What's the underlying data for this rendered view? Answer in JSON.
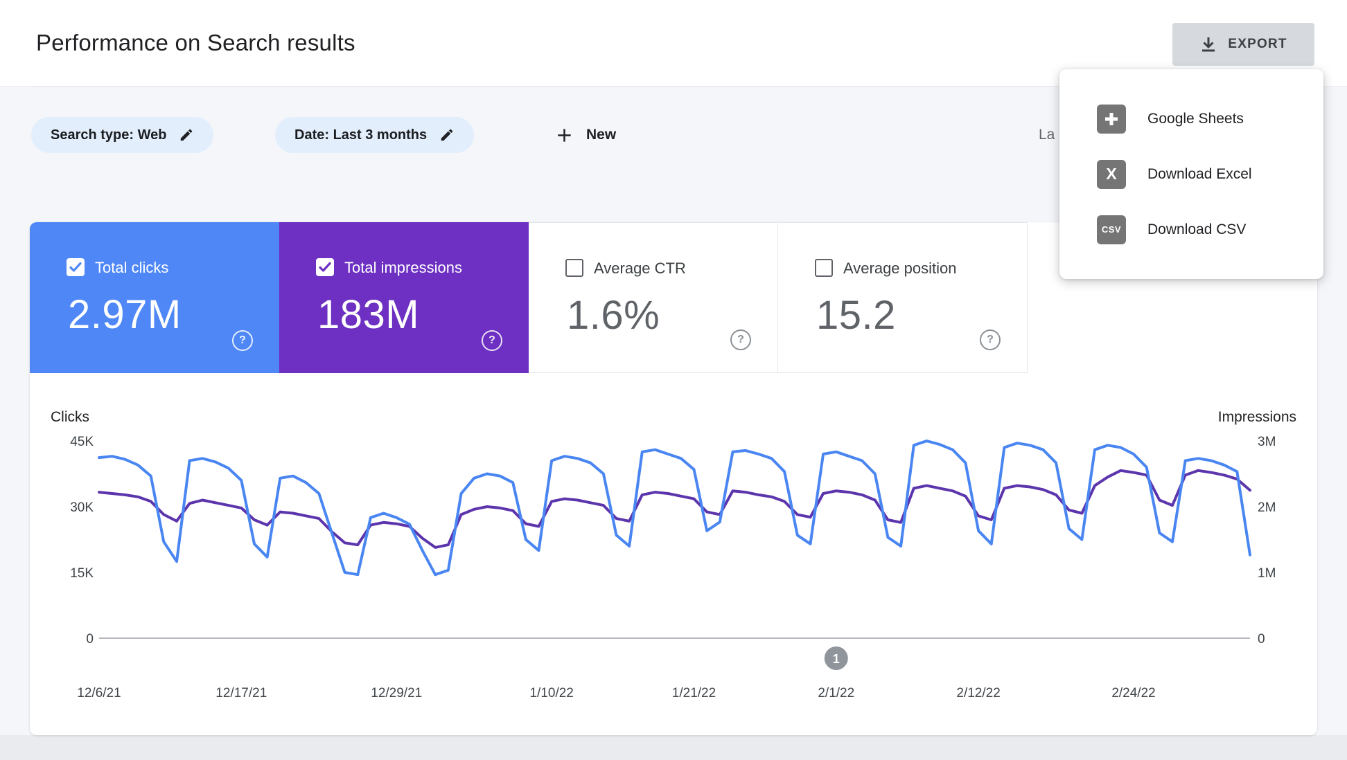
{
  "header": {
    "title": "Performance on Search results",
    "export_label": "EXPORT"
  },
  "export_menu": {
    "items": [
      {
        "label": "Google Sheets",
        "icon": "google-sheets-icon"
      },
      {
        "label": "Download Excel",
        "icon": "excel-icon",
        "icon_text": "X"
      },
      {
        "label": "Download CSV",
        "icon": "csv-icon",
        "icon_text": "CSV"
      }
    ]
  },
  "filters": {
    "search_type_chip": "Search type: Web",
    "date_chip": "Date: Last 3 months",
    "new_button": "New",
    "last_updated_partial": "La"
  },
  "metrics": [
    {
      "label": "Total clicks",
      "value": "2.97M",
      "selected": true,
      "color": "#4f88f6",
      "check_color": "#4f88f6"
    },
    {
      "label": "Total impressions",
      "value": "183M",
      "selected": true,
      "color": "#6d30c2",
      "check_color": "#6d30c2"
    },
    {
      "label": "Average CTR",
      "value": "1.6%",
      "selected": false,
      "color": "#ffffff"
    },
    {
      "label": "Average position",
      "value": "15.2",
      "selected": false,
      "color": "#ffffff"
    }
  ],
  "chart_data": {
    "type": "line",
    "num_points": 90,
    "x_ticks": [
      {
        "index": 0,
        "label": "12/6/21"
      },
      {
        "index": 11,
        "label": "12/17/21"
      },
      {
        "index": 23,
        "label": "12/29/21"
      },
      {
        "index": 35,
        "label": "1/10/22"
      },
      {
        "index": 46,
        "label": "1/21/22"
      },
      {
        "index": 57,
        "label": "2/1/22"
      },
      {
        "index": 68,
        "label": "2/12/22"
      },
      {
        "index": 80,
        "label": "2/24/22"
      }
    ],
    "left_axis": {
      "label": "Clicks",
      "unit": "K",
      "range": [
        0,
        45
      ],
      "ticks": [
        "0",
        "15K",
        "30K",
        "45K"
      ]
    },
    "right_axis": {
      "label": "Impressions",
      "unit": "M",
      "range": [
        0,
        3
      ],
      "ticks": [
        "0",
        "1M",
        "2M",
        "3M"
      ]
    },
    "grid": "baseline-only",
    "annotation_marker": {
      "label": "1",
      "at_index": 57
    },
    "series": [
      {
        "name": "Clicks",
        "axis": "left",
        "unit": "K",
        "color": "#4a86f2",
        "values": [
          41.2,
          41.5,
          40.8,
          39.5,
          37,
          22,
          17.5,
          40.5,
          41,
          40.2,
          38.8,
          36,
          21.5,
          18.5,
          36.5,
          37,
          35.5,
          33,
          24,
          15,
          14.5,
          27.5,
          28.5,
          27.5,
          26,
          20,
          14.5,
          15.5,
          33,
          36.5,
          37.5,
          37,
          35.5,
          22.5,
          20,
          40.5,
          41.5,
          41,
          40,
          37.5,
          23.5,
          21,
          42.5,
          43,
          42,
          41,
          38.5,
          24.5,
          26.5,
          42.5,
          42.8,
          42,
          41,
          38,
          23.5,
          21.5,
          42,
          42.5,
          41.5,
          40.5,
          37.5,
          23,
          21,
          44,
          45,
          44.2,
          43,
          40,
          24.5,
          21.5,
          43.5,
          44.5,
          44,
          43,
          40,
          25,
          22.5,
          43,
          44,
          43.5,
          42,
          39,
          24,
          22,
          40.5,
          41,
          40.5,
          39.5,
          38,
          19
        ]
      },
      {
        "name": "Impressions",
        "axis": "right",
        "unit": "M",
        "color": "#5c35ad",
        "values": [
          2.22,
          2.2,
          2.18,
          2.15,
          2.08,
          1.88,
          1.78,
          2.05,
          2.1,
          2.06,
          2.02,
          1.98,
          1.8,
          1.72,
          1.92,
          1.9,
          1.86,
          1.82,
          1.62,
          1.45,
          1.42,
          1.72,
          1.76,
          1.74,
          1.7,
          1.52,
          1.38,
          1.42,
          1.88,
          1.96,
          2,
          1.98,
          1.94,
          1.74,
          1.7,
          2.08,
          2.12,
          2.1,
          2.06,
          2.02,
          1.82,
          1.78,
          2.18,
          2.22,
          2.2,
          2.16,
          2.12,
          1.92,
          1.88,
          2.24,
          2.22,
          2.18,
          2.15,
          2.08,
          1.88,
          1.84,
          2.2,
          2.24,
          2.22,
          2.18,
          2.1,
          1.8,
          1.76,
          2.28,
          2.32,
          2.28,
          2.24,
          2.16,
          1.86,
          1.8,
          2.28,
          2.32,
          2.3,
          2.26,
          2.18,
          1.95,
          1.9,
          2.32,
          2.45,
          2.55,
          2.52,
          2.48,
          2.1,
          2.02,
          2.48,
          2.55,
          2.52,
          2.48,
          2.42,
          2.25
        ]
      }
    ]
  }
}
